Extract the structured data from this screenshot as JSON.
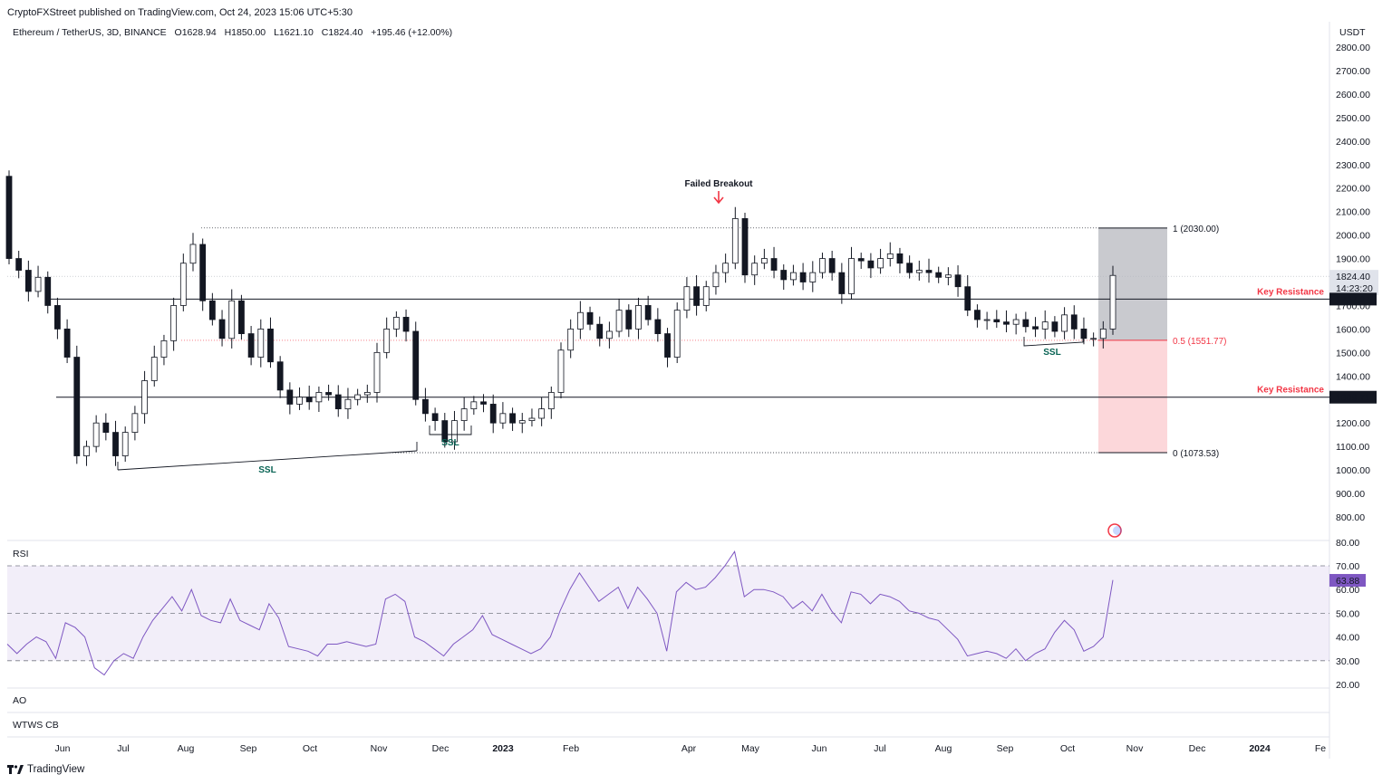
{
  "header": {
    "publisher": "CryptoFXStreet published on TradingView.com, Oct 24, 2023 15:06 UTC+5:30",
    "symbol": "Ethereum / TetherUS, 3D, BINANCE",
    "open": "O1628.94",
    "high": "H1850.00",
    "low": "L1621.10",
    "close": "C1824.40",
    "change": "+195.46 (+12.00%)"
  },
  "price_unit": "USDT",
  "panes": {
    "rsi": "RSI",
    "ao": "AO",
    "wtws": "WTWS CB"
  },
  "footer": {
    "brand": "TradingView",
    "logo": "tradingview-logo-icon"
  },
  "colors": {
    "up": "#ffffff",
    "down": "#131722",
    "rsi": "#7e57c2",
    "resistance": "#f23645",
    "ssl": "#086354"
  },
  "chart_data": [
    {
      "type": "candlestick",
      "title": "Ethereum / TetherUS, 3D, BINANCE",
      "x_labels": [
        "Jun",
        "Jul",
        "Aug",
        "Sep",
        "Oct",
        "Nov",
        "Dec",
        "2023",
        "Feb",
        "Apr",
        "May",
        "Jun",
        "Jul",
        "Aug",
        "Sep",
        "Oct",
        "Nov",
        "Dec",
        "2024",
        "Fe"
      ],
      "y_ticks": [
        800,
        900,
        1000,
        1100,
        1200,
        1300,
        1400,
        1500,
        1600,
        1700,
        1800,
        1900,
        2000,
        2100,
        2200,
        2300,
        2400,
        2500,
        2600,
        2700,
        2800
      ],
      "ylim": [
        730,
        2850
      ],
      "y_unit": "USDT",
      "close_series": [
        1900,
        1850,
        1760,
        1820,
        1700,
        1600,
        1480,
        1060,
        1100,
        1200,
        1160,
        1060,
        1160,
        1240,
        1380,
        1480,
        1550,
        1700,
        1880,
        1960,
        1720,
        1640,
        1560,
        1720,
        1580,
        1480,
        1600,
        1460,
        1340,
        1280,
        1310,
        1290,
        1330,
        1320,
        1260,
        1300,
        1320,
        1330,
        1500,
        1600,
        1650,
        1590,
        1300,
        1240,
        1210,
        1120,
        1210,
        1260,
        1290,
        1280,
        1200,
        1240,
        1200,
        1210,
        1220,
        1260,
        1330,
        1510,
        1600,
        1670,
        1620,
        1560,
        1590,
        1680,
        1600,
        1700,
        1640,
        1580,
        1480,
        1680,
        1780,
        1700,
        1780,
        1840,
        1880,
        2070,
        1830,
        1880,
        1900,
        1850,
        1810,
        1840,
        1800,
        1840,
        1900,
        1840,
        1750,
        1900,
        1890,
        1860,
        1900,
        1920,
        1880,
        1840,
        1850,
        1840,
        1820,
        1830,
        1780,
        1680,
        1640,
        1640,
        1630,
        1620,
        1640,
        1610,
        1600,
        1630,
        1590,
        1660,
        1600,
        1560,
        1560,
        1600,
        1828
      ],
      "price_labels": [
        {
          "value": 1824.4,
          "text": "1824.40",
          "timer": "14:23:20"
        },
        {
          "value": 1727.27,
          "text": "1727.27"
        },
        {
          "value": 1309.71,
          "text": "1309.71"
        }
      ],
      "levels": [
        {
          "value": 1727.27,
          "label": "Key Resistance"
        },
        {
          "value": 1309.71,
          "label": "Key Resistance"
        }
      ],
      "fibonacci": [
        {
          "value": 2030.0,
          "label": "1 (2030.00)"
        },
        {
          "value": 1551.77,
          "label": "0.5 (1551.77)"
        },
        {
          "value": 1073.53,
          "label": "0 (1073.53)"
        }
      ],
      "annotations": [
        {
          "text": "Failed Breakout"
        },
        {
          "text": "SSL"
        },
        {
          "text": "SSL"
        },
        {
          "text": "SSL"
        }
      ]
    },
    {
      "type": "line",
      "title": "RSI",
      "y_ticks": [
        20,
        30,
        40,
        50,
        60,
        70,
        80
      ],
      "ylim": [
        18,
        81
      ],
      "bands": [
        30,
        50,
        70
      ],
      "current_label": "63.88",
      "values": [
        37,
        33,
        37,
        40,
        38,
        31,
        46,
        44,
        40,
        27,
        24,
        30,
        33,
        31,
        40,
        47,
        52,
        57,
        51,
        60,
        49,
        47,
        46,
        56,
        47,
        45,
        43,
        54,
        48,
        36,
        35,
        34,
        32,
        37,
        37,
        38,
        37,
        36,
        37,
        56,
        58,
        55,
        40,
        38,
        35,
        32,
        37,
        40,
        43,
        49,
        41,
        39,
        37,
        35,
        33,
        35,
        40,
        51,
        60,
        67,
        61,
        55,
        58,
        61,
        52,
        61,
        56,
        50,
        34,
        59,
        63,
        60,
        61,
        65,
        70,
        76,
        57,
        60,
        60,
        59,
        57,
        52,
        55,
        51,
        58,
        51,
        46,
        59,
        58,
        54,
        58,
        57,
        55,
        51,
        50,
        48,
        47,
        43,
        39,
        32,
        33,
        34,
        33,
        31,
        35,
        30,
        33,
        35,
        42,
        47,
        43,
        34,
        36,
        40,
        64
      ]
    }
  ]
}
